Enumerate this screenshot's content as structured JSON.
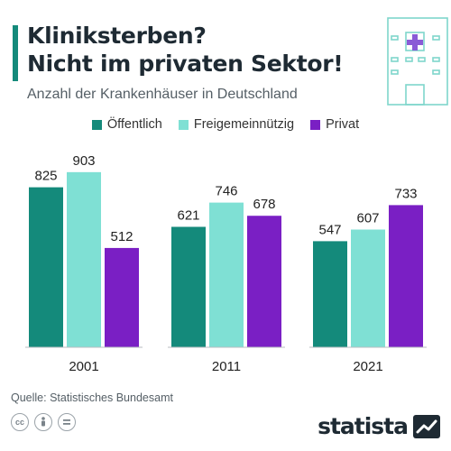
{
  "header": {
    "title_line1": "Kliniksterben?",
    "title_line2": "Nicht im privaten Sektor!",
    "subtitle": "Anzahl der Krankenhäuser in Deutschland"
  },
  "colors": {
    "oeffentlich": "#148a7b",
    "freigemeinnuetzig": "#7fe0d4",
    "privat": "#7a1fc4",
    "title_bar": "#148a7b"
  },
  "chart_data": {
    "type": "bar",
    "categories": [
      "2001",
      "2011",
      "2021"
    ],
    "series": [
      {
        "name": "Öffentlich",
        "values": [
          825,
          621,
          547
        ]
      },
      {
        "name": "Freigemeinnützig",
        "values": [
          903,
          746,
          607
        ]
      },
      {
        "name": "Privat",
        "values": [
          512,
          678,
          733
        ]
      }
    ],
    "ylim": [
      0,
      1000
    ],
    "grid": false,
    "legend_position": "top-center",
    "data_labels": true
  },
  "footer": {
    "source": "Quelle: Statistisches Bundesamt",
    "brand": "statista",
    "license_icons": [
      "cc-icon",
      "attribution-icon",
      "no-derivatives-icon"
    ]
  },
  "icons": {
    "header_icon": "hospital-building-icon"
  }
}
